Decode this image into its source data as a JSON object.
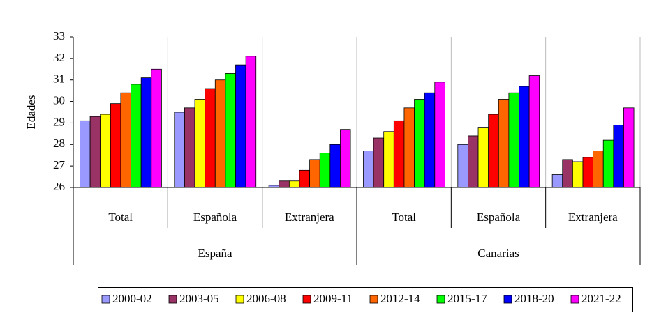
{
  "chart_data": {
    "type": "bar",
    "y_label": "Edades",
    "categories": [
      "Total",
      "Española",
      "Extranjera",
      "Total",
      "Española",
      "Extranjera"
    ],
    "groups": [
      "España",
      "Canarias"
    ],
    "ylim": [
      26,
      33
    ],
    "yticks": [
      26,
      27,
      28,
      29,
      30,
      31,
      32,
      33
    ],
    "legend": "bottom",
    "series": [
      {
        "name": "2000-02",
        "color": "#9999ff",
        "values": [
          29.1,
          29.5,
          26.1,
          27.7,
          28.0,
          26.6
        ]
      },
      {
        "name": "2003-05",
        "color": "#993366",
        "values": [
          29.3,
          29.7,
          26.3,
          28.3,
          28.4,
          27.3
        ]
      },
      {
        "name": "2006-08",
        "color": "#ffff00",
        "values": [
          29.4,
          30.1,
          26.3,
          28.6,
          28.8,
          27.2
        ]
      },
      {
        "name": "2009-11",
        "color": "#ff0000",
        "values": [
          29.9,
          30.6,
          26.8,
          29.1,
          29.4,
          27.4
        ]
      },
      {
        "name": "2012-14",
        "color": "#ff6600",
        "values": [
          30.4,
          31.0,
          27.3,
          29.7,
          30.1,
          27.7
        ]
      },
      {
        "name": "2015-17",
        "color": "#00ff00",
        "values": [
          30.8,
          31.3,
          27.6,
          30.1,
          30.4,
          28.2
        ]
      },
      {
        "name": "2018-20",
        "color": "#0000ff",
        "values": [
          31.1,
          31.7,
          28.0,
          30.4,
          30.7,
          28.9
        ]
      },
      {
        "name": "2021-22",
        "color": "#ff00ff",
        "values": [
          31.5,
          32.1,
          28.7,
          30.9,
          31.2,
          29.7
        ]
      }
    ]
  }
}
